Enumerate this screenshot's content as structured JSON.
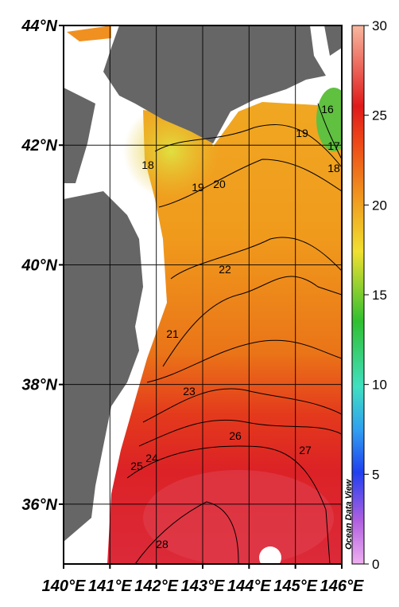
{
  "map": {
    "xlim": [
      140,
      146
    ],
    "ylim": [
      35,
      44
    ],
    "xticks": [
      {
        "value": 140,
        "label": "140°E"
      },
      {
        "value": 141,
        "label": "141°E"
      },
      {
        "value": 142,
        "label": "142°E"
      },
      {
        "value": 143,
        "label": "143°E"
      },
      {
        "value": 144,
        "label": "144°E"
      },
      {
        "value": 145,
        "label": "145°E"
      },
      {
        "value": 146,
        "label": "146°E"
      }
    ],
    "yticks": [
      {
        "value": 36,
        "label": "36°N"
      },
      {
        "value": 38,
        "label": "38°N"
      },
      {
        "value": 40,
        "label": "40°N"
      },
      {
        "value": 42,
        "label": "42°N"
      },
      {
        "value": 44,
        "label": "44°N"
      }
    ],
    "colorbar": {
      "lim": [
        0,
        30
      ],
      "ticks": [
        0,
        5,
        10,
        15,
        20,
        25,
        30
      ]
    },
    "contour_labels": [
      16,
      17,
      18,
      18,
      19,
      19,
      20,
      21,
      22,
      23,
      24,
      25,
      26,
      27,
      28
    ],
    "watermark": "Ocean Data View"
  }
}
